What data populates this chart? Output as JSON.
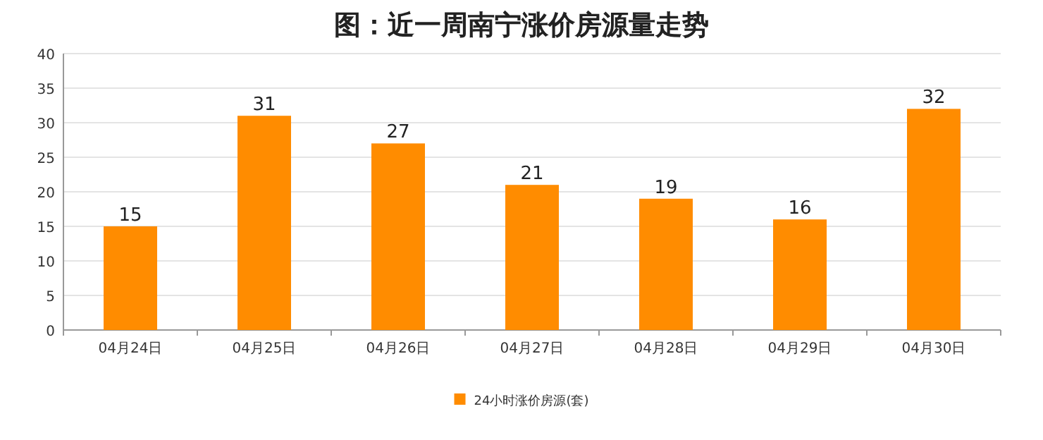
{
  "chart_data": {
    "type": "bar",
    "title": "图：近一周南宁涨价房源量走势",
    "categories": [
      "04月24日",
      "04月25日",
      "04月26日",
      "04月27日",
      "04月28日",
      "04月29日",
      "04月30日"
    ],
    "series": [
      {
        "name": "24小时涨价房源(套)",
        "color": "#ff8c00",
        "values": [
          15,
          31,
          27,
          21,
          19,
          16,
          32
        ]
      }
    ],
    "ylim": [
      0,
      40
    ],
    "yticks": [
      0,
      5,
      10,
      15,
      20,
      25,
      30,
      35,
      40
    ],
    "grid": "y",
    "legend": "bottom",
    "data_labels": true
  }
}
